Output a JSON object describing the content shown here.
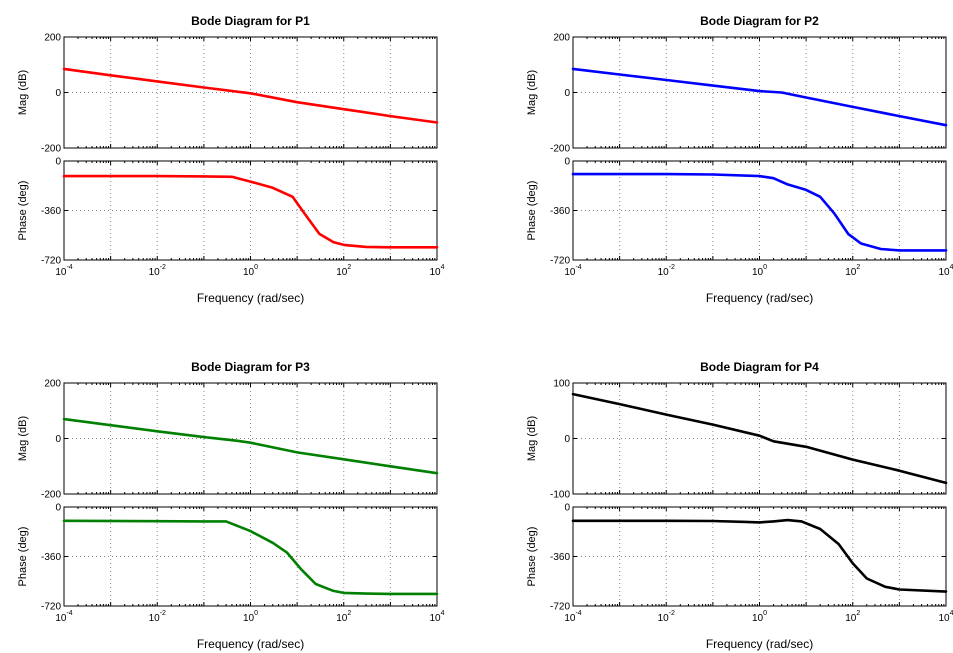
{
  "chart_data": [
    {
      "type": "line",
      "title": "Bode Diagram for P1",
      "color": "#ff0000",
      "xlabel": "Frequency  (rad/sec)",
      "x_scale": "log",
      "x_ticks": [
        0.0001,
        0.01,
        1,
        100,
        10000
      ],
      "xlim": [
        0.0001,
        10000
      ],
      "grid": true,
      "magnitude": {
        "ylabel": "Mag (dB)",
        "ylim": [
          -200,
          200
        ],
        "y_ticks": [
          -200,
          0,
          200
        ],
        "x": [
          0.0001,
          0.001,
          0.01,
          0.1,
          1,
          10,
          100,
          1000,
          10000
        ],
        "y": [
          85,
          62,
          40,
          18,
          -3,
          -35,
          -60,
          -85,
          -108
        ]
      },
      "phase": {
        "ylabel": "Phase (deg)",
        "ylim": [
          -720,
          0
        ],
        "y_ticks": [
          -720,
          -360,
          0
        ],
        "x": [
          0.0001,
          0.01,
          0.1,
          0.4,
          1,
          3,
          8,
          15,
          30,
          60,
          100,
          300,
          1000,
          10000
        ],
        "y": [
          -110,
          -110,
          -112,
          -115,
          -150,
          -195,
          -260,
          -390,
          -530,
          -590,
          -610,
          -625,
          -628,
          -628
        ]
      }
    },
    {
      "type": "line",
      "title": "Bode Diagram for P2",
      "color": "#0000ff",
      "xlabel": "Frequency  (rad/sec)",
      "x_scale": "log",
      "x_ticks": [
        0.0001,
        0.01,
        1,
        100,
        10000
      ],
      "xlim": [
        0.0001,
        10000
      ],
      "grid": true,
      "magnitude": {
        "ylabel": "Mag (dB)",
        "ylim": [
          -200,
          200
        ],
        "y_ticks": [
          -200,
          0,
          200
        ],
        "x": [
          0.0001,
          0.001,
          0.01,
          0.1,
          1,
          3,
          10,
          100,
          1000,
          10000
        ],
        "y": [
          85,
          65,
          45,
          25,
          5,
          0,
          -18,
          -52,
          -85,
          -118
        ]
      },
      "phase": {
        "ylabel": "Phase (deg)",
        "ylim": [
          -720,
          0
        ],
        "y_ticks": [
          -720,
          -360,
          0
        ],
        "x": [
          0.0001,
          0.01,
          0.1,
          1,
          2,
          4,
          10,
          20,
          40,
          80,
          150,
          400,
          1000,
          10000
        ],
        "y": [
          -95,
          -95,
          -98,
          -110,
          -125,
          -170,
          -210,
          -260,
          -380,
          -530,
          -600,
          -640,
          -650,
          -650
        ]
      }
    },
    {
      "type": "line",
      "title": "Bode Diagram for P3",
      "color": "#008000",
      "xlabel": "Frequency  (rad/sec)",
      "x_scale": "log",
      "x_ticks": [
        0.0001,
        0.01,
        1,
        100,
        10000
      ],
      "xlim": [
        0.0001,
        10000
      ],
      "grid": true,
      "magnitude": {
        "ylabel": "Mag (dB)",
        "ylim": [
          -200,
          200
        ],
        "y_ticks": [
          -200,
          0,
          200
        ],
        "x": [
          0.0001,
          0.001,
          0.01,
          0.1,
          0.5,
          1,
          10,
          100,
          1000,
          10000
        ],
        "y": [
          70,
          48,
          26,
          5,
          -8,
          -15,
          -50,
          -75,
          -100,
          -125
        ]
      },
      "phase": {
        "ylabel": "Phase (deg)",
        "ylim": [
          -720,
          0
        ],
        "y_ticks": [
          -720,
          -360,
          0
        ],
        "x": [
          0.0001,
          0.01,
          0.1,
          0.3,
          1,
          3,
          6,
          12,
          25,
          60,
          100,
          300,
          1000,
          10000
        ],
        "y": [
          -100,
          -103,
          -105,
          -105,
          -175,
          -260,
          -330,
          -450,
          -560,
          -610,
          -625,
          -630,
          -632,
          -632
        ]
      }
    },
    {
      "type": "line",
      "title": "Bode Diagram for P4",
      "color": "#000000",
      "xlabel": "Frequency  (rad/sec)",
      "x_scale": "log",
      "x_ticks": [
        0.0001,
        0.01,
        1,
        100,
        10000
      ],
      "xlim": [
        0.0001,
        10000
      ],
      "grid": true,
      "magnitude": {
        "ylabel": "Mag (dB)",
        "ylim": [
          -100,
          100
        ],
        "y_ticks": [
          -100,
          0,
          100
        ],
        "x": [
          0.0001,
          0.001,
          0.01,
          0.1,
          1,
          2,
          10,
          100,
          1000,
          10000
        ],
        "y": [
          80,
          62,
          43,
          25,
          5,
          -5,
          -15,
          -38,
          -58,
          -80
        ]
      },
      "phase": {
        "ylabel": "Phase (deg)",
        "ylim": [
          -720,
          0
        ],
        "y_ticks": [
          -720,
          -360,
          0
        ],
        "x": [
          0.0001,
          0.01,
          0.1,
          0.5,
          1,
          2,
          4,
          8,
          20,
          50,
          100,
          200,
          500,
          1000,
          10000
        ],
        "y": [
          -100,
          -100,
          -102,
          -108,
          -112,
          -105,
          -95,
          -105,
          -160,
          -270,
          -410,
          -520,
          -580,
          -600,
          -615
        ]
      }
    }
  ]
}
